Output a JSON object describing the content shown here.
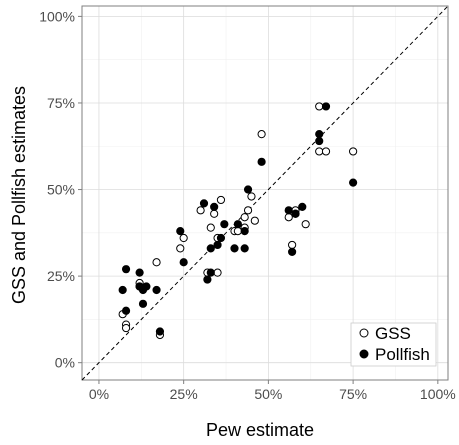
{
  "chart_data": {
    "type": "scatter",
    "xlabel": "Pew estimate",
    "ylabel": "GSS and Pollfish estimates",
    "xlim": [
      -0.05,
      1.03
    ],
    "ylim": [
      -0.05,
      1.03
    ],
    "x_ticks": [
      0,
      0.25,
      0.5,
      0.75,
      1.0
    ],
    "x_tick_labels": [
      "0%",
      "25%",
      "50%",
      "75%",
      "100%"
    ],
    "y_ticks": [
      0,
      0.25,
      0.5,
      0.75,
      1.0
    ],
    "y_tick_labels": [
      "0%",
      "25%",
      "50%",
      "75%",
      "100%"
    ],
    "grid": true,
    "reference_line": {
      "type": "identity",
      "style": "dashed"
    },
    "legend": {
      "position": "bottom-right",
      "entries": [
        {
          "label": "GSS",
          "marker": "open-circle"
        },
        {
          "label": "Pollfish",
          "marker": "filled-circle"
        }
      ]
    },
    "series": [
      {
        "name": "GSS",
        "marker": "open-circle",
        "points": [
          [
            0.07,
            0.14
          ],
          [
            0.08,
            0.11
          ],
          [
            0.08,
            0.1
          ],
          [
            0.12,
            0.23
          ],
          [
            0.12,
            0.22
          ],
          [
            0.17,
            0.29
          ],
          [
            0.18,
            0.08
          ],
          [
            0.24,
            0.33
          ],
          [
            0.25,
            0.36
          ],
          [
            0.3,
            0.44
          ],
          [
            0.32,
            0.26
          ],
          [
            0.33,
            0.39
          ],
          [
            0.34,
            0.43
          ],
          [
            0.35,
            0.26
          ],
          [
            0.35,
            0.36
          ],
          [
            0.36,
            0.47
          ],
          [
            0.4,
            0.38
          ],
          [
            0.41,
            0.38
          ],
          [
            0.43,
            0.39
          ],
          [
            0.43,
            0.42
          ],
          [
            0.44,
            0.44
          ],
          [
            0.45,
            0.48
          ],
          [
            0.46,
            0.41
          ],
          [
            0.48,
            0.66
          ],
          [
            0.56,
            0.42
          ],
          [
            0.57,
            0.34
          ],
          [
            0.58,
            0.44
          ],
          [
            0.58,
            0.43
          ],
          [
            0.61,
            0.4
          ],
          [
            0.65,
            0.74
          ],
          [
            0.65,
            0.61
          ],
          [
            0.67,
            0.61
          ],
          [
            0.75,
            0.61
          ]
        ]
      },
      {
        "name": "Pollfish",
        "marker": "filled-circle",
        "points": [
          [
            0.07,
            0.21
          ],
          [
            0.08,
            0.15
          ],
          [
            0.08,
            0.27
          ],
          [
            0.12,
            0.22
          ],
          [
            0.12,
            0.26
          ],
          [
            0.13,
            0.21
          ],
          [
            0.13,
            0.17
          ],
          [
            0.14,
            0.22
          ],
          [
            0.17,
            0.21
          ],
          [
            0.18,
            0.09
          ],
          [
            0.24,
            0.38
          ],
          [
            0.25,
            0.29
          ],
          [
            0.31,
            0.46
          ],
          [
            0.32,
            0.24
          ],
          [
            0.33,
            0.26
          ],
          [
            0.33,
            0.33
          ],
          [
            0.34,
            0.45
          ],
          [
            0.35,
            0.34
          ],
          [
            0.36,
            0.36
          ],
          [
            0.37,
            0.4
          ],
          [
            0.4,
            0.33
          ],
          [
            0.41,
            0.4
          ],
          [
            0.43,
            0.33
          ],
          [
            0.43,
            0.38
          ],
          [
            0.44,
            0.5
          ],
          [
            0.48,
            0.58
          ],
          [
            0.56,
            0.44
          ],
          [
            0.57,
            0.32
          ],
          [
            0.58,
            0.43
          ],
          [
            0.6,
            0.45
          ],
          [
            0.65,
            0.64
          ],
          [
            0.65,
            0.66
          ],
          [
            0.67,
            0.74
          ],
          [
            0.75,
            0.52
          ]
        ]
      }
    ]
  }
}
